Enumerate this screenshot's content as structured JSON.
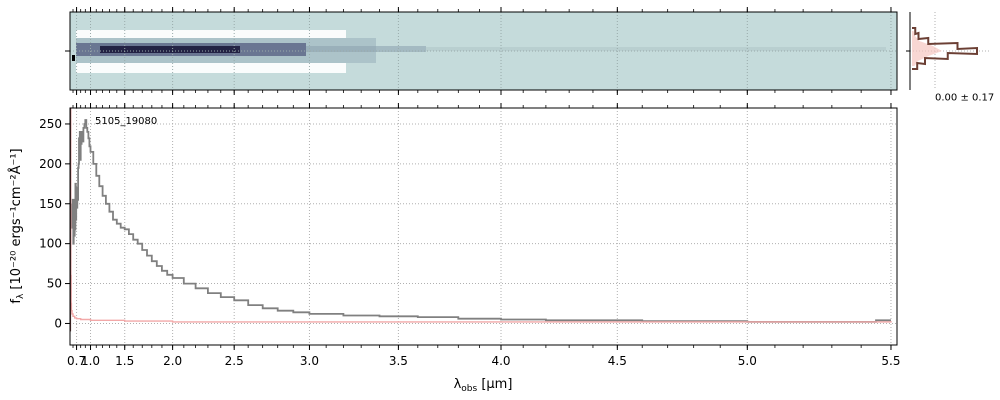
{
  "chart_data": [
    {
      "type": "heatmap",
      "panel": "2d-spectrum",
      "description_visible": "2D spectrum image strip",
      "colors": {
        "background": "#c5dbdb",
        "trace_dark": "#1c1a3c",
        "trace_mid": "#5e6888",
        "edge_light": "#ffffff"
      },
      "x_scale": "quadratic-wavelength",
      "xlim": [
        0.5,
        5.52
      ],
      "grid": true
    },
    {
      "type": "line",
      "panel": "profile",
      "profile_label": "0.00 ± 0.17",
      "colors": {
        "profile": "#6b3f34",
        "fill": "#f5c6c0"
      },
      "profile_points": [
        [
          -4,
          0.05
        ],
        [
          -3,
          0.1
        ],
        [
          -2,
          0.25
        ],
        [
          -1,
          0.7
        ],
        [
          0,
          1.0
        ],
        [
          1,
          0.55
        ],
        [
          2,
          0.2
        ],
        [
          3,
          0.08
        ]
      ],
      "grid": true
    },
    {
      "type": "line",
      "panel": "1d-spectrum",
      "object_label": "5105_19080",
      "xlabel_main": "λ",
      "xlabel_sub": "obs",
      "xlabel_unit": "[μm]",
      "ylabel_main": "f",
      "ylabel_sub": "λ",
      "ylabel_unit": "[10⁻²⁰ ergs⁻¹cm⁻²Å⁻¹]",
      "x_ticks": [
        0.7,
        1.0,
        1.5,
        2.0,
        2.5,
        3.0,
        3.5,
        4.0,
        4.5,
        5.0,
        5.5
      ],
      "x_tick_labels": [
        "0.7",
        "1.0",
        "1.5",
        "2.0",
        "2.5",
        "3.0",
        "3.5",
        "4.0",
        "4.5",
        "5.0",
        "5.5"
      ],
      "y_ticks": [
        0,
        50,
        100,
        150,
        200,
        250
      ],
      "y_tick_labels": [
        "0",
        "50",
        "100",
        "150",
        "200",
        "250"
      ],
      "xlim": [
        0.5,
        5.52
      ],
      "ylim": [
        -27,
        270
      ],
      "grid": true,
      "series": [
        {
          "role": "flux",
          "color": "#808080",
          "x": [
            0.56,
            0.575,
            0.59,
            0.6,
            0.61,
            0.62,
            0.63,
            0.64,
            0.65,
            0.66,
            0.67,
            0.68,
            0.69,
            0.7,
            0.71,
            0.72,
            0.73,
            0.74,
            0.75,
            0.76,
            0.77,
            0.78,
            0.79,
            0.8,
            0.82,
            0.84,
            0.86,
            0.88,
            0.9,
            0.92,
            0.94,
            0.96,
            0.98,
            1.0,
            1.05,
            1.1,
            1.15,
            1.2,
            1.25,
            1.3,
            1.35,
            1.4,
            1.45,
            1.5,
            1.55,
            1.6,
            1.65,
            1.7,
            1.75,
            1.8,
            1.85,
            1.9,
            1.95,
            2.0,
            2.1,
            2.2,
            2.3,
            2.4,
            2.5,
            2.6,
            2.7,
            2.8,
            2.9,
            3.0,
            3.2,
            3.4,
            3.6,
            3.8,
            4.0,
            4.2,
            4.4,
            4.6,
            4.8,
            5.0,
            5.2,
            5.4,
            5.45,
            5.5
          ],
          "y": [
            150,
            120,
            155,
            140,
            100,
            120,
            155,
            110,
            140,
            118,
            175,
            130,
            150,
            160,
            145,
            170,
            155,
            195,
            200,
            232,
            218,
            240,
            205,
            225,
            240,
            228,
            245,
            250,
            255,
            245,
            240,
            232,
            222,
            215,
            200,
            185,
            172,
            160,
            150,
            140,
            130,
            125,
            120,
            118,
            112,
            105,
            100,
            92,
            85,
            78,
            72,
            66,
            61,
            57,
            50,
            44,
            38,
            33,
            29,
            23,
            19,
            16,
            14,
            12,
            10,
            9,
            8,
            6,
            5,
            4,
            4,
            3,
            3,
            2,
            2,
            2,
            4,
            4
          ]
        },
        {
          "role": "error",
          "color": "#f2a8a8",
          "x": [
            0.52,
            0.525,
            0.53,
            0.54,
            0.55,
            0.57,
            0.6,
            0.65,
            0.7,
            0.8,
            1.0,
            1.5,
            2.0,
            2.5,
            3.0,
            3.5,
            4.0,
            4.5,
            5.0,
            5.5
          ],
          "y": [
            270,
            140,
            60,
            25,
            16,
            12,
            9,
            7,
            6,
            5,
            4,
            3,
            2,
            2,
            2,
            2,
            2,
            2,
            2,
            3
          ]
        },
        {
          "role": "edge",
          "color": "#6b3f3f",
          "x": [
            0.515,
            0.515
          ],
          "y": [
            270,
            -10
          ]
        }
      ]
    }
  ]
}
